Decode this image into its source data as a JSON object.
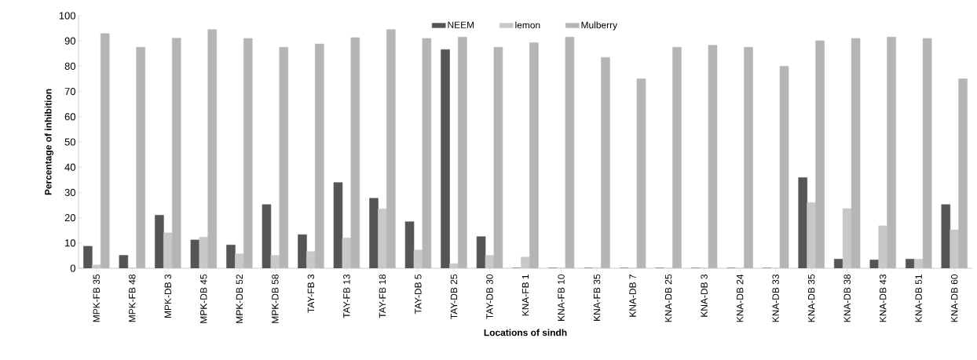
{
  "chart_data": {
    "type": "bar",
    "xlabel": "Locations of sindh",
    "ylabel": "Percentage of inhibition",
    "categories": [
      "MPK-FB 35",
      "MPK-FB 48",
      "MPK-DB 3",
      "MPK-DB 45",
      "MPK-DB 52",
      "MPK-DB 58",
      "TAY-FB 3",
      "TAY-FB 13",
      "TAY-FB 18",
      "TAY-DB 5",
      "TAY-DB 25",
      "TAY-DB 30",
      "KNA-FB 1",
      "KNA-FB 10",
      "KNA-FB 35",
      "KNA-DB 7",
      "KNA-DB 25",
      "KNA-DB 3",
      "KNA-DB 24",
      "KNA-DB 33",
      "KNA-DB 35",
      "KNA-DB 38",
      "KNA-DB 43",
      "KNA-DB 51",
      "KNA-DB 60"
    ],
    "series": [
      {
        "name": "NEEM",
        "color": "#555555",
        "values": [
          8.7,
          5.1,
          21,
          11.2,
          9.2,
          25.2,
          13.3,
          33.9,
          27.7,
          18.4,
          86.6,
          12.5,
          0,
          0,
          0,
          0,
          0,
          0,
          0,
          0,
          35.9,
          3.6,
          3.3,
          3.6,
          25.2
        ]
      },
      {
        "name": "lemon",
        "color": "#c8c8c8",
        "values": [
          1.3,
          0,
          14,
          12.3,
          5.7,
          5.1,
          6.6,
          12,
          23.5,
          7.2,
          1.8,
          5.1,
          4.4,
          0,
          0,
          0,
          0,
          0,
          0,
          0,
          26,
          23.6,
          16.8,
          3.6,
          15.2
        ]
      },
      {
        "name": "Mulberry",
        "color": "#b5b5b5",
        "values": [
          92.9,
          87.5,
          91.1,
          94.5,
          91,
          87.5,
          88.8,
          91.3,
          94.5,
          91,
          91.5,
          87.5,
          89.3,
          91.5,
          83.5,
          75,
          87.5,
          88.3,
          87.5,
          80,
          90.1,
          91,
          91.5,
          91,
          75
        ]
      }
    ],
    "ylim": [
      0,
      100
    ],
    "yticks": [
      0,
      10,
      20,
      30,
      40,
      50,
      60,
      70,
      80,
      90,
      100
    ],
    "legend": "top"
  }
}
